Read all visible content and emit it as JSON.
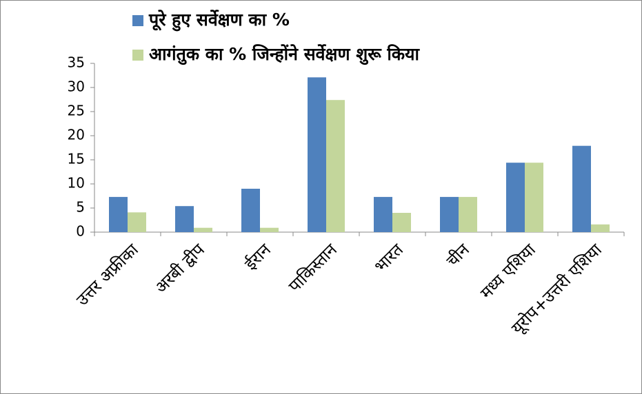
{
  "chart_data": {
    "type": "bar",
    "categories": [
      "उत्तर अफ्रीका",
      "अरबी द्वीप",
      "ईरान",
      "पाकिस्तान",
      "भारत",
      "चीन",
      "मध्य एशिया",
      "यूरोप+उत्तरी एशिया"
    ],
    "series": [
      {
        "name": "पूरे हुए सर्वेक्षण का %",
        "color": "#4f81bd",
        "values": [
          7.3,
          5.4,
          9.0,
          32.1,
          7.3,
          7.3,
          14.4,
          17.9
        ]
      },
      {
        "name": "आगंतुक का % जिन्होंने सर्वेक्षण शुरू किया",
        "color": "#c3d69b",
        "values": [
          4.1,
          0.9,
          0.9,
          27.4,
          4.0,
          7.3,
          14.4,
          1.6
        ]
      }
    ],
    "ylim": [
      0,
      35
    ],
    "yticks": [
      0,
      5,
      10,
      15,
      20,
      25,
      30,
      35
    ],
    "grid": false,
    "legend": "top"
  }
}
